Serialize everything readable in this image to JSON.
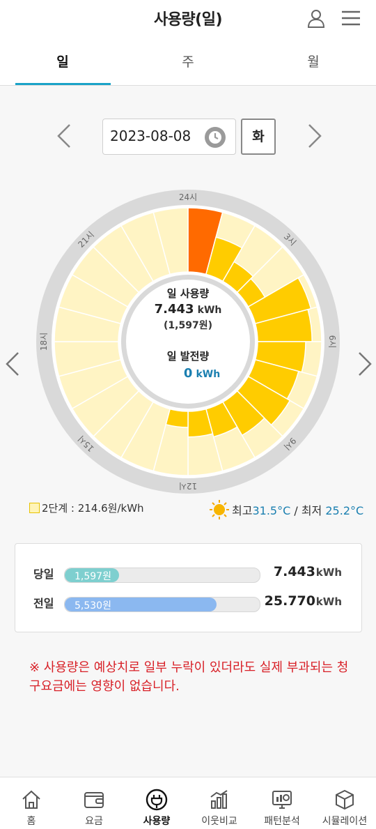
{
  "header": {
    "title": "사용량(일)"
  },
  "tabs": [
    {
      "label": "일"
    },
    {
      "label": "주"
    },
    {
      "label": "월"
    }
  ],
  "date_selector": {
    "date": "2023-08-08",
    "weekday": "화"
  },
  "chart_data": {
    "type": "radial-bar",
    "hour_labels": [
      "24시",
      "3시",
      "6시",
      "9시",
      "12시",
      "15시",
      "18시",
      "21시"
    ],
    "center": {
      "usage_label": "일 사용량",
      "usage_value": "7.443",
      "usage_unit": "kWh",
      "usage_cost": "(1,597원)",
      "generation_label": "일 발전량",
      "generation_value": "0",
      "generation_unit": "kWh"
    },
    "hourly_levels": [
      1.0,
      0.6,
      0.35,
      0.3,
      0.9,
      0.85,
      0.75,
      0.7,
      0.75,
      0.6,
      0.45,
      0.4,
      0.25,
      0,
      0,
      0,
      0,
      0,
      0,
      0,
      0,
      0,
      0,
      0
    ],
    "colors": {
      "peak": "#ff6a00",
      "active": "#ffcc00",
      "base": "#fff4c4",
      "ring": "#d9d9d9"
    }
  },
  "legend": {
    "tier": "2단계 : 214.6원/kWh"
  },
  "weather": {
    "max_label": "최고",
    "max_temp": "31.5°C",
    "separator": "/",
    "min_label": "최저",
    "min_temp": "25.2°C"
  },
  "comparison": [
    {
      "label": "당일",
      "bar_text": "1,597원",
      "fill": 0.28,
      "color": "#7ecfcf",
      "value": "7.443",
      "unit": "kWh"
    },
    {
      "label": "전일",
      "bar_text": "5,530원",
      "fill": 0.78,
      "color": "#8bb8f0",
      "value": "25.770",
      "unit": "kWh"
    }
  ],
  "notice": "※ 사용량은 예상치로 일부 누락이 있더라도 실제 부과되는 청구요금에는 영향이 없습니다.",
  "bottom_nav": [
    {
      "label": "홈",
      "icon": "home-icon"
    },
    {
      "label": "요금",
      "icon": "wallet-icon"
    },
    {
      "label": "사용량",
      "icon": "plug-icon"
    },
    {
      "label": "이웃비교",
      "icon": "bar-chart-icon"
    },
    {
      "label": "패턴분석",
      "icon": "monitor-chart-icon"
    },
    {
      "label": "시뮬레이션",
      "icon": "cube-icon"
    }
  ]
}
